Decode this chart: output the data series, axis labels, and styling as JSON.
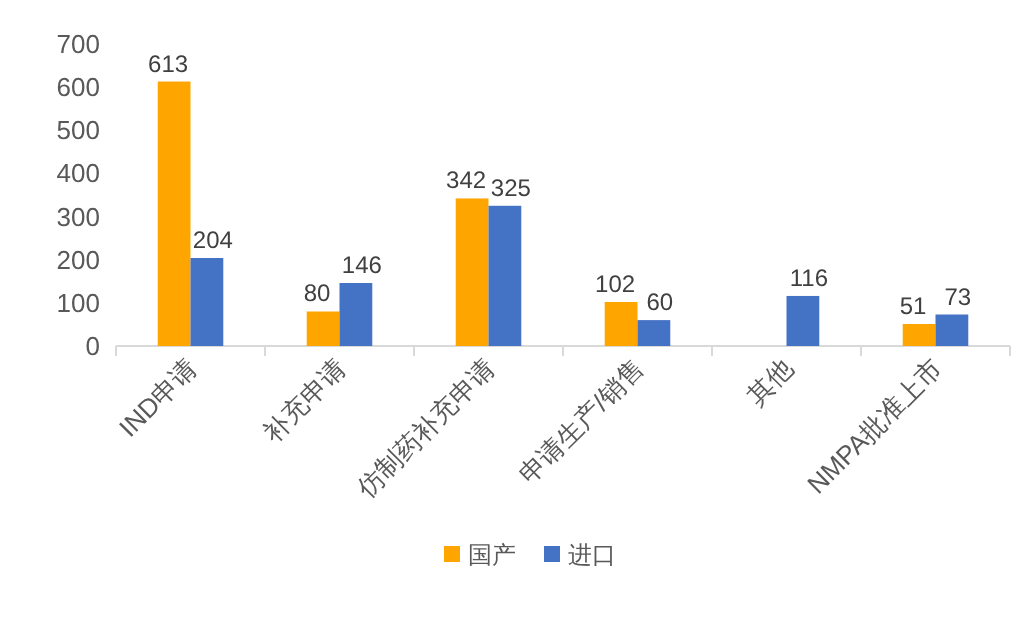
{
  "chart_data": {
    "type": "bar",
    "categories": [
      "IND申请",
      "补充申请",
      "仿制药补充申请",
      "申请生产/销售",
      "其他",
      "NMPA批准上市"
    ],
    "series": [
      {
        "name": "国产",
        "color": "#ffa500",
        "values": [
          613,
          80,
          342,
          102,
          null,
          51
        ]
      },
      {
        "name": "进口",
        "color": "#4472c4",
        "values": [
          204,
          146,
          325,
          60,
          116,
          73
        ]
      }
    ],
    "ylim": [
      0,
      700
    ],
    "yticks": [
      0,
      100,
      200,
      300,
      400,
      500,
      600,
      700
    ],
    "grid": false,
    "legend": "bottom",
    "data_labels": true
  }
}
